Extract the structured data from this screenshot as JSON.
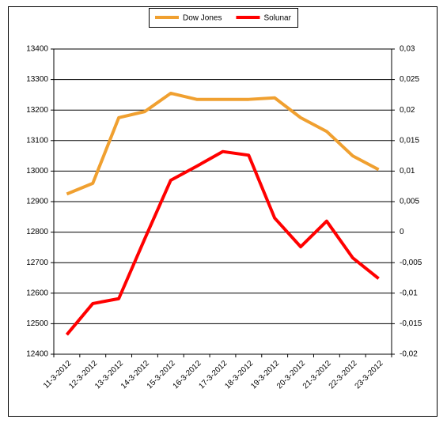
{
  "chart_data": {
    "type": "line",
    "categories": [
      "11-3-2012",
      "12-3-2012",
      "13-3-2012",
      "14-3-2012",
      "15-3-2012",
      "16-3-2012",
      "17-3-2012",
      "18-3-2012",
      "19-3-2012",
      "20-3-2012",
      "21-3-2012",
      "22-3-2012",
      "23-3-2012"
    ],
    "series": [
      {
        "name": "Dow Jones",
        "color": "#f0a030",
        "values": [
          12925,
          12960,
          13175,
          13195,
          13255,
          13235,
          13235,
          13235,
          13240,
          13175,
          13130,
          13050,
          13005
        ]
      },
      {
        "name": "Solunar",
        "color": "#ff0000",
        "axis": "y2",
        "values": [
          -0.0168,
          -0.0117,
          -0.0109,
          -0.0011,
          0.0085,
          0.0108,
          0.0132,
          0.0126,
          0.0023,
          -0.0024,
          0.0018,
          -0.0042,
          -0.0076
        ]
      }
    ],
    "ylim": [
      12400,
      13400
    ],
    "yticks": [
      12400,
      12500,
      12600,
      12700,
      12800,
      12900,
      13000,
      13100,
      13200,
      13300,
      13400
    ],
    "y2lim": [
      -0.02,
      0.03
    ],
    "y2ticks": [
      {
        "value": -0.02,
        "label": "-0,02"
      },
      {
        "value": -0.015,
        "label": "-0,015"
      },
      {
        "value": -0.01,
        "label": "-0,01"
      },
      {
        "value": -0.005,
        "label": "-0,005"
      },
      0,
      {
        "value": 0.005,
        "label": "0,005"
      },
      {
        "value": 0.01,
        "label": "0,01"
      },
      {
        "value": 0.015,
        "label": "0,015"
      },
      {
        "value": 0.02,
        "label": "0,02"
      },
      {
        "value": 0.025,
        "label": "0,025"
      },
      {
        "value": 0.03,
        "label": "0,03"
      }
    ],
    "grid": true,
    "legend": "top"
  }
}
